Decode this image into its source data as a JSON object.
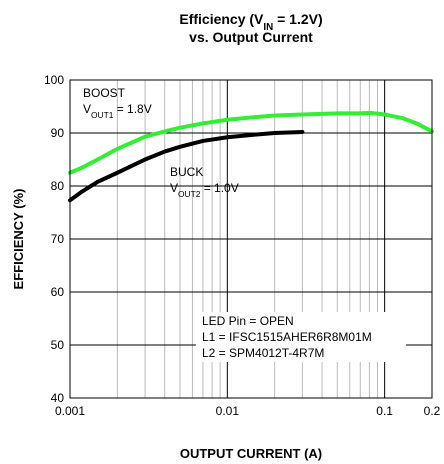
{
  "chart_data": {
    "type": "line",
    "title": [
      {
        "text": "Efficiency (V"
      },
      {
        "sub": "IN"
      },
      {
        "text": " = 1.2V)"
      }
    ],
    "subtitle": "vs. Output Current",
    "xlabel": "OUTPUT CURRENT (A)",
    "ylabel": "EFFICIENCY (%)",
    "xscale": "log",
    "xlim": [
      0.001,
      0.2
    ],
    "ylim": [
      40,
      100
    ],
    "xticks": [
      0.001,
      0.01,
      0.1,
      0.2
    ],
    "xminorticks": [
      0.002,
      0.003,
      0.004,
      0.005,
      0.006,
      0.007,
      0.008,
      0.009,
      0.02,
      0.03,
      0.04,
      0.05,
      0.06,
      0.07,
      0.08,
      0.09
    ],
    "yticks": [
      40,
      50,
      60,
      70,
      80,
      90,
      100
    ],
    "grid": true,
    "series": [
      {
        "name": "BOOST",
        "color": "#33ee33",
        "x": [
          0.001,
          0.0012,
          0.0015,
          0.002,
          0.003,
          0.004,
          0.005,
          0.007,
          0.01,
          0.015,
          0.02,
          0.03,
          0.05,
          0.07,
          0.08,
          0.1,
          0.13,
          0.16,
          0.2
        ],
        "values": [
          82.5,
          83.5,
          85,
          87,
          89.3,
          90.3,
          91,
          91.8,
          92.5,
          93,
          93.3,
          93.5,
          93.7,
          93.7,
          93.8,
          93.5,
          92.8,
          91.8,
          90.3
        ]
      },
      {
        "name": "BUCK",
        "color": "#000000",
        "x": [
          0.001,
          0.0012,
          0.0015,
          0.002,
          0.003,
          0.004,
          0.005,
          0.007,
          0.01,
          0.015,
          0.02,
          0.03
        ],
        "values": [
          77.3,
          79,
          80.8,
          82.5,
          85,
          86.5,
          87.4,
          88.5,
          89.2,
          89.7,
          90,
          90.2
        ]
      }
    ],
    "annotations": [
      [
        {
          "text": "BOOST"
        }
      ],
      [
        {
          "text": "V"
        },
        {
          "sub": "OUT1"
        },
        {
          "text": " = 1.8V"
        }
      ],
      [
        {
          "text": "BUCK"
        }
      ],
      [
        {
          "text": "V"
        },
        {
          "sub": "OUT2"
        },
        {
          "text": " = 1.0V"
        }
      ],
      [
        {
          "text": "LED Pin = OPEN"
        }
      ],
      [
        {
          "text": "L1 = IFSC1515AHER6R8M01M"
        }
      ],
      [
        {
          "text": "L2 = SPM4012T-4R7M"
        }
      ]
    ]
  }
}
